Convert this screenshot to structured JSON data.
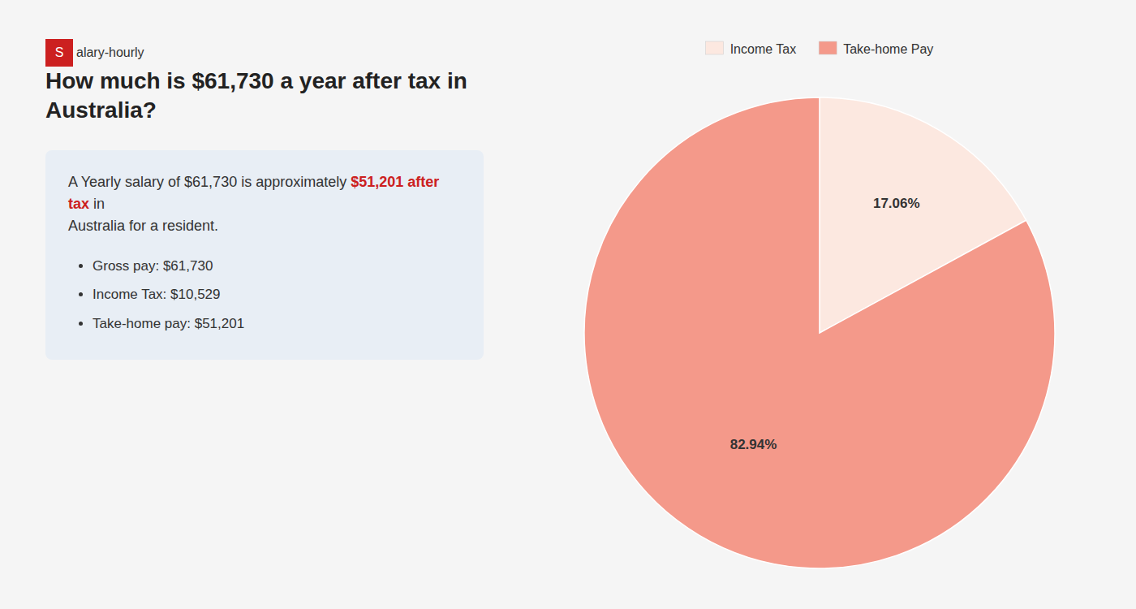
{
  "chart_data": {
    "type": "pie",
    "title": "How much is $61,730 a year after tax in Australia?",
    "categories": [
      "Income Tax",
      "Take-home Pay"
    ],
    "values": [
      17.06,
      82.94
    ],
    "value_labels": [
      "17.06%",
      "82.94%"
    ],
    "colors": [
      "#fce8e0",
      "#f4998a"
    ],
    "data_labels": true,
    "legend": "top",
    "annotations": [
      {
        "text": "S",
        "color": "#cc2020"
      },
      {
        "text": "alary-hourly"
      },
      {
        "text": "A Yearly salary of $61,730 is approximately "
      },
      {
        "text": "$51,201 after tax",
        "color": "#cc2020"
      },
      {
        "text": " in"
      },
      {
        "text": "Australia for a resident."
      },
      {
        "text": "Gross pay: $61,730"
      },
      {
        "text": "Income Tax: $10,529"
      },
      {
        "text": "Take-home pay: $51,201"
      }
    ]
  }
}
